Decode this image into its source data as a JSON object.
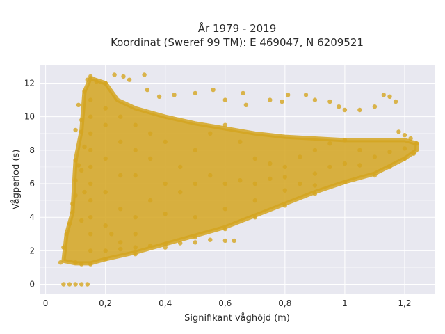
{
  "chart_data": {
    "type": "scatter",
    "title": "År 1979 - 2019",
    "subtitle": "Koordinat (Sweref 99 TM): E 469047, N 6209521",
    "xlabel": "Signifikant våghöjd (m)",
    "ylabel": "Vågperiod (s)",
    "xlim": [
      -0.02,
      1.3
    ],
    "ylim": [
      -0.6,
      13.1
    ],
    "xticks": [
      0,
      0.2,
      0.4,
      0.6,
      0.8,
      1,
      1.2
    ],
    "xtick_labels": [
      "0",
      "0,2",
      "0,4",
      "0,6",
      "0,8",
      "1",
      "1,2"
    ],
    "yticks": [
      0,
      2,
      4,
      6,
      8,
      10,
      12
    ],
    "ytick_labels": [
      "0",
      "2",
      "4",
      "6",
      "8",
      "10",
      "12"
    ],
    "grid": true,
    "plot_background": "#e8e8f0",
    "grid_color": "#ffffff",
    "marker_color": "#d4a520",
    "series": [
      {
        "points": [
          [
            0.06,
            0.0
          ],
          [
            0.08,
            0.0
          ],
          [
            0.1,
            0.0
          ],
          [
            0.12,
            0.0
          ],
          [
            0.14,
            0.0
          ],
          [
            0.05,
            1.3
          ],
          [
            0.06,
            2.2
          ],
          [
            0.07,
            3.0
          ],
          [
            0.08,
            3.6
          ],
          [
            0.09,
            4.3
          ],
          [
            0.09,
            4.8
          ],
          [
            0.1,
            5.3
          ],
          [
            0.1,
            6.2
          ],
          [
            0.11,
            7.1
          ],
          [
            0.1,
            7.4
          ],
          [
            0.12,
            9.1
          ],
          [
            0.1,
            9.2
          ],
          [
            0.11,
            10.7
          ],
          [
            0.13,
            11.5
          ],
          [
            0.14,
            12.2
          ],
          [
            0.15,
            12.4
          ],
          [
            0.17,
            12.1
          ],
          [
            0.2,
            12.0
          ],
          [
            0.23,
            12.5
          ],
          [
            0.26,
            12.4
          ],
          [
            0.28,
            12.2
          ],
          [
            0.33,
            12.5
          ],
          [
            0.34,
            11.6
          ],
          [
            0.38,
            11.2
          ],
          [
            0.43,
            11.3
          ],
          [
            0.5,
            11.4
          ],
          [
            0.56,
            11.6
          ],
          [
            0.6,
            11.0
          ],
          [
            0.66,
            11.4
          ],
          [
            0.67,
            10.7
          ],
          [
            0.75,
            11.0
          ],
          [
            0.79,
            10.9
          ],
          [
            0.81,
            11.3
          ],
          [
            0.87,
            11.3
          ],
          [
            0.9,
            11.0
          ],
          [
            0.95,
            10.9
          ],
          [
            0.98,
            10.6
          ],
          [
            1.0,
            10.4
          ],
          [
            1.05,
            10.4
          ],
          [
            1.1,
            10.6
          ],
          [
            1.13,
            11.3
          ],
          [
            1.15,
            11.2
          ],
          [
            1.17,
            10.9
          ],
          [
            1.18,
            9.1
          ],
          [
            1.2,
            8.9
          ],
          [
            1.22,
            8.7
          ],
          [
            1.24,
            8.4
          ],
          [
            1.23,
            7.8
          ],
          [
            1.2,
            7.5
          ],
          [
            1.15,
            7.0
          ],
          [
            1.1,
            6.5
          ],
          [
            1.0,
            6.1
          ],
          [
            0.9,
            5.4
          ],
          [
            0.8,
            4.7
          ],
          [
            0.7,
            4.0
          ],
          [
            0.6,
            3.3
          ],
          [
            0.5,
            2.8
          ],
          [
            0.4,
            2.2
          ],
          [
            0.3,
            1.8
          ],
          [
            0.2,
            1.5
          ],
          [
            0.15,
            1.2
          ],
          [
            0.12,
            1.2
          ],
          [
            0.1,
            1.3
          ],
          [
            0.55,
            2.65
          ],
          [
            0.6,
            2.6
          ],
          [
            0.63,
            2.6
          ],
          [
            0.5,
            2.5
          ],
          [
            0.45,
            2.45
          ],
          [
            0.4,
            2.4
          ],
          [
            0.35,
            2.3
          ],
          [
            0.3,
            2.2
          ],
          [
            0.25,
            2.1
          ],
          [
            0.2,
            2.0
          ],
          [
            0.22,
            3.0
          ],
          [
            0.3,
            4.0
          ],
          [
            0.35,
            5.0
          ],
          [
            0.4,
            6.0
          ],
          [
            0.45,
            7.0
          ],
          [
            0.5,
            8.0
          ],
          [
            0.55,
            9.0
          ],
          [
            0.6,
            9.5
          ],
          [
            0.65,
            8.5
          ],
          [
            0.7,
            7.5
          ],
          [
            0.75,
            7.2
          ],
          [
            0.8,
            7.0
          ],
          [
            0.85,
            7.6
          ],
          [
            0.9,
            8.0
          ],
          [
            0.95,
            8.4
          ],
          [
            1.0,
            8.6
          ],
          [
            1.05,
            8.0
          ],
          [
            0.15,
            2.0
          ],
          [
            0.15,
            3.0
          ],
          [
            0.15,
            4.0
          ],
          [
            0.15,
            5.0
          ],
          [
            0.15,
            6.0
          ],
          [
            0.15,
            7.0
          ],
          [
            0.15,
            8.0
          ],
          [
            0.15,
            9.0
          ],
          [
            0.15,
            10.0
          ],
          [
            0.15,
            11.0
          ],
          [
            0.2,
            3.5
          ],
          [
            0.2,
            5.5
          ],
          [
            0.2,
            7.5
          ],
          [
            0.2,
            9.5
          ],
          [
            0.2,
            10.5
          ],
          [
            0.25,
            4.5
          ],
          [
            0.25,
            6.5
          ],
          [
            0.25,
            8.5
          ],
          [
            0.25,
            10.0
          ],
          [
            0.3,
            6.5
          ],
          [
            0.3,
            8.0
          ],
          [
            0.3,
            9.5
          ],
          [
            0.35,
            7.5
          ],
          [
            0.35,
            9.0
          ],
          [
            0.4,
            8.5
          ],
          [
            0.45,
            5.5
          ],
          [
            0.5,
            6.0
          ],
          [
            0.55,
            6.5
          ],
          [
            0.6,
            6.0
          ],
          [
            0.65,
            6.2
          ],
          [
            0.7,
            6.0
          ],
          [
            0.75,
            6.3
          ],
          [
            0.8,
            6.4
          ],
          [
            0.85,
            6.0
          ],
          [
            0.9,
            6.6
          ],
          [
            0.95,
            7.0
          ],
          [
            1.0,
            7.2
          ],
          [
            1.05,
            7.1
          ],
          [
            1.1,
            7.6
          ],
          [
            1.15,
            7.9
          ],
          [
            1.2,
            8.1
          ],
          [
            0.5,
            4.0
          ],
          [
            0.6,
            4.5
          ],
          [
            0.7,
            5.0
          ],
          [
            0.8,
            5.6
          ],
          [
            0.9,
            5.9
          ],
          [
            0.4,
            4.2
          ],
          [
            0.3,
            3.0
          ],
          [
            0.25,
            2.5
          ],
          [
            0.12,
            3.8
          ],
          [
            0.13,
            5.5
          ],
          [
            0.12,
            6.8
          ],
          [
            0.13,
            8.2
          ],
          [
            0.12,
            9.8
          ]
        ]
      }
    ]
  }
}
